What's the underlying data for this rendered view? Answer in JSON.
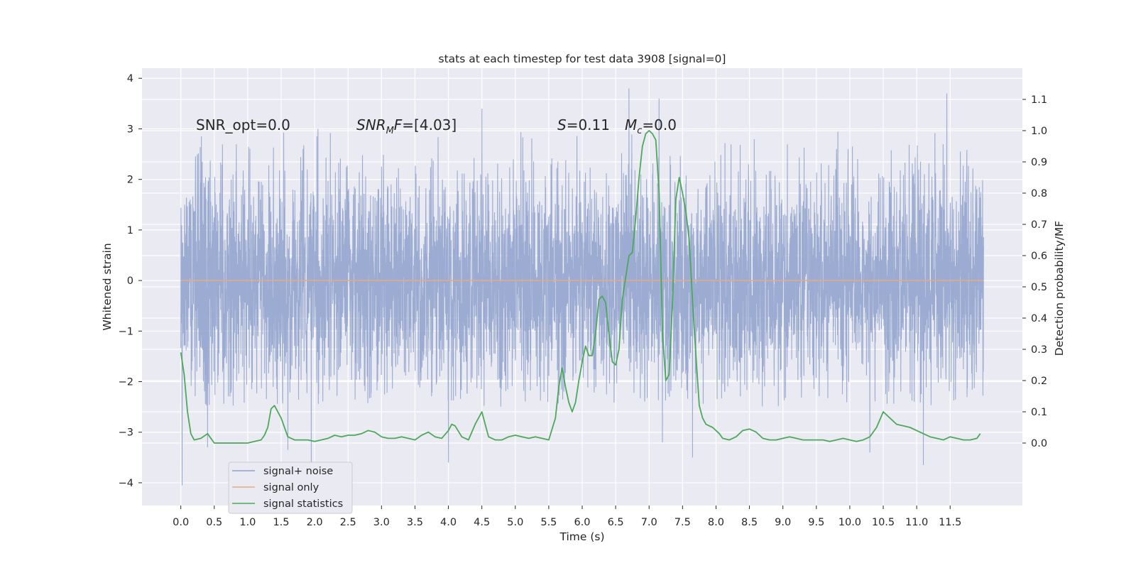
{
  "chart_data": {
    "type": "line",
    "title": "stats at each timestep for test data 3908 [signal=0]",
    "xlabel": "Time (s)",
    "ylabel": "Whitened strain",
    "ylabel_right": "Detection probability/MF",
    "xlim": [
      -0.58,
      12.58
    ],
    "ylim": [
      -4.45,
      4.2
    ],
    "ylim_right": [
      -0.2,
      1.2
    ],
    "xticks": [
      0.0,
      0.5,
      1.0,
      1.5,
      2.0,
      2.5,
      3.0,
      3.5,
      4.0,
      4.5,
      5.0,
      5.5,
      6.0,
      6.5,
      7.0,
      7.5,
      8.0,
      8.5,
      9.0,
      9.5,
      10.0,
      10.5,
      11.0,
      11.5
    ],
    "xtick_labels": [
      "0.0",
      "0.5",
      "1.0",
      "1.5",
      "2.0",
      "2.5",
      "3.0",
      "3.5",
      "4.0",
      "4.5",
      "5.0",
      "5.5",
      "6.0",
      "6.5",
      "7.0",
      "7.5",
      "8.0",
      "8.5",
      "9.0",
      "9.5",
      "10.0",
      "10.5",
      "11.0",
      "11.5"
    ],
    "yticks": [
      -4,
      -3,
      -2,
      -1,
      0,
      1,
      2,
      3,
      4
    ],
    "ytick_labels": [
      "−4",
      "−3",
      "−2",
      "−1",
      "0",
      "1",
      "2",
      "3",
      "4"
    ],
    "yticks_right": [
      0.0,
      0.1,
      0.2,
      0.3,
      0.4,
      0.5,
      0.6,
      0.7,
      0.8,
      0.9,
      1.0,
      1.1
    ],
    "ytick_labels_right": [
      "0.0",
      "0.1",
      "0.2",
      "0.3",
      "0.4",
      "0.5",
      "0.6",
      "0.7",
      "0.8",
      "0.9",
      "1.0",
      "1.1"
    ],
    "grid": true,
    "legend_position": "lower-left",
    "annotations": {
      "snr_opt": "SNR_opt=0.0",
      "snr_mf_sym": "SNR",
      "snr_mf_sub": "M",
      "snr_mf_sym2": "F",
      "snr_mf_val": "=[4.03]",
      "s_sym": "S",
      "s_val": "=0.11",
      "mc_sym": "M",
      "mc_sub": "c",
      "mc_val": "=0.0"
    },
    "strain_series": {
      "name": "signal+ noise",
      "color": "#8da0cb",
      "t_start": 0.0,
      "t_end": 12.0,
      "typical_envelope": [
        -1.9,
        2.4
      ],
      "extreme_peaks": [
        {
          "x": 0.02,
          "y": -4.05
        },
        {
          "x": 0.4,
          "y": -3.3
        },
        {
          "x": 1.6,
          "y": -3.35
        },
        {
          "x": 1.95,
          "y": -3.6
        },
        {
          "x": 2.05,
          "y": 3.0
        },
        {
          "x": 4.0,
          "y": -3.6
        },
        {
          "x": 4.5,
          "y": 3.4
        },
        {
          "x": 6.7,
          "y": 3.8
        },
        {
          "x": 7.15,
          "y": 3.6
        },
        {
          "x": 7.2,
          "y": -3.2
        },
        {
          "x": 7.65,
          "y": -3.5
        },
        {
          "x": 10.3,
          "y": -3.4
        },
        {
          "x": 11.1,
          "y": -3.65
        },
        {
          "x": 11.45,
          "y": 3.7
        }
      ]
    },
    "signal_only": {
      "name": "signal only",
      "color": "#e8a985",
      "x": [
        0.0,
        12.0
      ],
      "y": [
        0.0,
        0.0
      ]
    },
    "signal_statistics": {
      "name": "signal statistics",
      "color": "#4da85b",
      "x": [
        0.0,
        0.05,
        0.1,
        0.15,
        0.2,
        0.3,
        0.4,
        0.5,
        0.6,
        0.7,
        0.8,
        0.9,
        1.0,
        1.1,
        1.2,
        1.25,
        1.3,
        1.35,
        1.4,
        1.5,
        1.6,
        1.7,
        1.8,
        1.9,
        2.0,
        2.1,
        2.2,
        2.3,
        2.4,
        2.5,
        2.6,
        2.7,
        2.8,
        2.9,
        3.0,
        3.1,
        3.2,
        3.3,
        3.4,
        3.5,
        3.6,
        3.7,
        3.8,
        3.9,
        4.0,
        4.05,
        4.1,
        4.2,
        4.3,
        4.4,
        4.5,
        4.6,
        4.7,
        4.8,
        4.9,
        5.0,
        5.1,
        5.2,
        5.3,
        5.4,
        5.5,
        5.6,
        5.65,
        5.7,
        5.75,
        5.8,
        5.85,
        5.9,
        5.95,
        6.0,
        6.05,
        6.1,
        6.15,
        6.2,
        6.25,
        6.3,
        6.35,
        6.4,
        6.45,
        6.5,
        6.55,
        6.6,
        6.65,
        6.7,
        6.75,
        6.8,
        6.85,
        6.9,
        6.95,
        7.0,
        7.05,
        7.1,
        7.15,
        7.2,
        7.25,
        7.3,
        7.35,
        7.4,
        7.45,
        7.5,
        7.55,
        7.6,
        7.65,
        7.7,
        7.75,
        7.8,
        7.85,
        7.9,
        7.95,
        8.0,
        8.05,
        8.1,
        8.2,
        8.3,
        8.4,
        8.5,
        8.6,
        8.7,
        8.8,
        8.9,
        9.0,
        9.1,
        9.2,
        9.3,
        9.4,
        9.5,
        9.6,
        9.7,
        9.8,
        9.9,
        10.0,
        10.1,
        10.2,
        10.3,
        10.4,
        10.5,
        10.6,
        10.7,
        10.8,
        10.9,
        11.0,
        11.1,
        11.2,
        11.3,
        11.4,
        11.5,
        11.6,
        11.7,
        11.8,
        11.9,
        11.95
      ],
      "y": [
        0.29,
        0.22,
        0.1,
        0.03,
        0.01,
        0.015,
        0.03,
        0.0,
        0.0,
        0.0,
        0.0,
        0.0,
        0.0,
        0.005,
        0.01,
        0.025,
        0.05,
        0.11,
        0.12,
        0.08,
        0.02,
        0.01,
        0.01,
        0.01,
        0.005,
        0.01,
        0.015,
        0.025,
        0.02,
        0.025,
        0.025,
        0.03,
        0.04,
        0.035,
        0.02,
        0.015,
        0.015,
        0.02,
        0.015,
        0.01,
        0.025,
        0.035,
        0.02,
        0.015,
        0.04,
        0.06,
        0.055,
        0.02,
        0.01,
        0.06,
        0.1,
        0.02,
        0.01,
        0.01,
        0.02,
        0.025,
        0.02,
        0.015,
        0.02,
        0.015,
        0.01,
        0.08,
        0.18,
        0.24,
        0.18,
        0.13,
        0.1,
        0.13,
        0.2,
        0.26,
        0.31,
        0.28,
        0.28,
        0.35,
        0.46,
        0.47,
        0.45,
        0.35,
        0.26,
        0.25,
        0.3,
        0.46,
        0.53,
        0.6,
        0.61,
        0.72,
        0.85,
        0.95,
        0.99,
        1.0,
        0.99,
        0.97,
        0.8,
        0.35,
        0.2,
        0.22,
        0.45,
        0.78,
        0.85,
        0.8,
        0.74,
        0.65,
        0.45,
        0.28,
        0.12,
        0.08,
        0.06,
        0.055,
        0.05,
        0.04,
        0.03,
        0.015,
        0.01,
        0.02,
        0.04,
        0.045,
        0.035,
        0.015,
        0.01,
        0.01,
        0.015,
        0.02,
        0.015,
        0.01,
        0.01,
        0.01,
        0.01,
        0.005,
        0.01,
        0.015,
        0.01,
        0.005,
        0.01,
        0.02,
        0.05,
        0.1,
        0.08,
        0.06,
        0.055,
        0.05,
        0.04,
        0.03,
        0.02,
        0.015,
        0.01,
        0.02,
        0.015,
        0.01,
        0.01,
        0.015,
        0.03
      ]
    }
  }
}
